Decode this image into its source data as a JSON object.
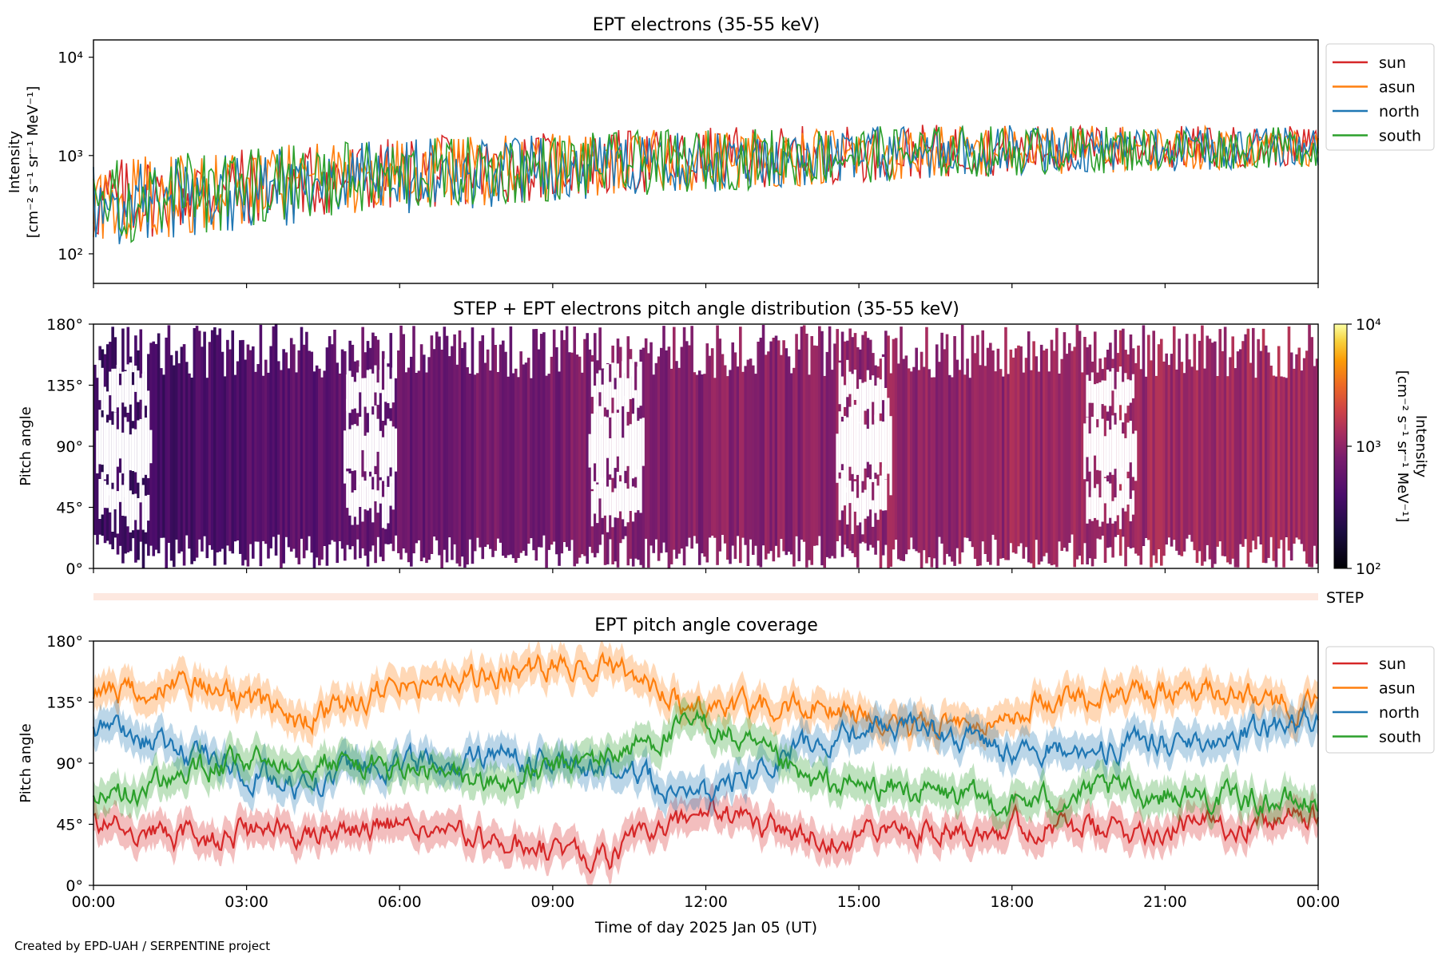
{
  "credit": "Created by EPD-UAH / SERPENTINE project",
  "chart_data": [
    {
      "type": "line",
      "title": "EPT electrons (35-55 keV)",
      "ylabel_lines": [
        "Intensity",
        "[cm⁻² s⁻¹ sr⁻¹ MeV⁻¹]"
      ],
      "yscale": "log",
      "ylim": [
        50,
        15000
      ],
      "yticks": [
        {
          "value": 100,
          "label": "10²"
        },
        {
          "value": 1000,
          "label": "10³"
        },
        {
          "value": 10000,
          "label": "10⁴"
        }
      ],
      "xlim": [
        0,
        24
      ],
      "legend": "outside-right",
      "series": [
        {
          "name": "sun",
          "color": "#d62728",
          "trend_hours": [
            0,
            3,
            6,
            9,
            12,
            15,
            18,
            21,
            24
          ],
          "trend_values": [
            330,
            480,
            640,
            780,
            920,
            1050,
            1150,
            1200,
            1250
          ]
        },
        {
          "name": "asun",
          "color": "#ff7f0e",
          "trend_hours": [
            0,
            3,
            6,
            9,
            12,
            15,
            18,
            21,
            24
          ],
          "trend_values": [
            320,
            470,
            620,
            760,
            900,
            1030,
            1130,
            1180,
            1230
          ]
        },
        {
          "name": "north",
          "color": "#1f77b4",
          "trend_hours": [
            0,
            3,
            6,
            9,
            12,
            15,
            18,
            21,
            24
          ],
          "trend_values": [
            300,
            450,
            600,
            740,
            880,
            1010,
            1120,
            1170,
            1220
          ]
        },
        {
          "name": "south",
          "color": "#2ca02c",
          "trend_hours": [
            0,
            3,
            6,
            9,
            12,
            15,
            18,
            21,
            24
          ],
          "trend_values": [
            310,
            460,
            610,
            750,
            890,
            1020,
            1120,
            1170,
            1220
          ]
        }
      ]
    },
    {
      "type": "heatmap",
      "title": "STEP + EPT electrons pitch angle distribution (35-55 keV)",
      "ylabel": "Pitch angle",
      "ylim": [
        0,
        180
      ],
      "yticks": [
        {
          "value": 0,
          "label": "0°"
        },
        {
          "value": 45,
          "label": "45°"
        },
        {
          "value": 90,
          "label": "90°"
        },
        {
          "value": 135,
          "label": "135°"
        },
        {
          "value": 180,
          "label": "180°"
        }
      ],
      "xlim": [
        0,
        24
      ],
      "colorbar": {
        "label": "Intensity",
        "unit": "[cm⁻² s⁻¹ sr⁻¹ MeV⁻¹]",
        "scale": "log",
        "range": [
          100,
          10000
        ],
        "ticks": [
          {
            "value": 100,
            "label": "10²"
          },
          {
            "value": 1000,
            "label": "10³"
          },
          {
            "value": 10000,
            "label": "10⁴"
          }
        ],
        "colormap": "inferno"
      },
      "intensity_trend_hours": [
        0,
        3,
        6,
        9,
        12,
        15,
        18,
        21,
        24
      ],
      "intensity_trend_values": [
        300,
        450,
        600,
        750,
        880,
        1000,
        1100,
        1150,
        1200
      ]
    },
    {
      "type": "bar",
      "label": "STEP",
      "color": "#fde8e0",
      "xlim": [
        0,
        24
      ]
    },
    {
      "type": "line",
      "title": "EPT pitch angle coverage",
      "ylabel": "Pitch angle",
      "xlabel": "Time of day 2025 Jan 05 (UT)",
      "ylim": [
        0,
        180
      ],
      "yticks": [
        {
          "value": 0,
          "label": "0°"
        },
        {
          "value": 45,
          "label": "45°"
        },
        {
          "value": 90,
          "label": "90°"
        },
        {
          "value": 135,
          "label": "135°"
        },
        {
          "value": 180,
          "label": "180°"
        }
      ],
      "xlim": [
        0,
        24
      ],
      "xticks": [
        {
          "value": 0,
          "label": "00:00"
        },
        {
          "value": 3,
          "label": "03:00"
        },
        {
          "value": 6,
          "label": "06:00"
        },
        {
          "value": 9,
          "label": "09:00"
        },
        {
          "value": 12,
          "label": "12:00"
        },
        {
          "value": 15,
          "label": "15:00"
        },
        {
          "value": 18,
          "label": "18:00"
        },
        {
          "value": 21,
          "label": "21:00"
        },
        {
          "value": 24,
          "label": "00:00"
        }
      ],
      "legend": "outside-right",
      "series": [
        {
          "name": "sun",
          "color": "#d62728",
          "x": [
            0,
            2,
            4,
            6,
            8,
            10,
            12,
            14,
            16,
            18,
            20,
            22,
            24
          ],
          "y": [
            45,
            35,
            40,
            45,
            30,
            20,
            55,
            35,
            40,
            45,
            40,
            45,
            50
          ]
        },
        {
          "name": "asun",
          "color": "#ff7f0e",
          "x": [
            0,
            2,
            4,
            6,
            8,
            10,
            12,
            14,
            16,
            18,
            20,
            22,
            24
          ],
          "y": [
            140,
            150,
            120,
            150,
            155,
            165,
            125,
            135,
            115,
            130,
            140,
            145,
            130
          ]
        },
        {
          "name": "north",
          "color": "#1f77b4",
          "x": [
            0,
            2,
            4,
            6,
            8,
            10,
            12,
            14,
            16,
            18,
            20,
            22,
            24
          ],
          "y": [
            115,
            95,
            75,
            90,
            95,
            85,
            65,
            105,
            120,
            100,
            100,
            110,
            120
          ]
        },
        {
          "name": "south",
          "color": "#2ca02c",
          "x": [
            0,
            2,
            4,
            6,
            8,
            10,
            12,
            14,
            16,
            18,
            20,
            22,
            24
          ],
          "y": [
            60,
            85,
            95,
            85,
            75,
            95,
            120,
            75,
            70,
            60,
            70,
            65,
            60
          ]
        }
      ]
    }
  ]
}
